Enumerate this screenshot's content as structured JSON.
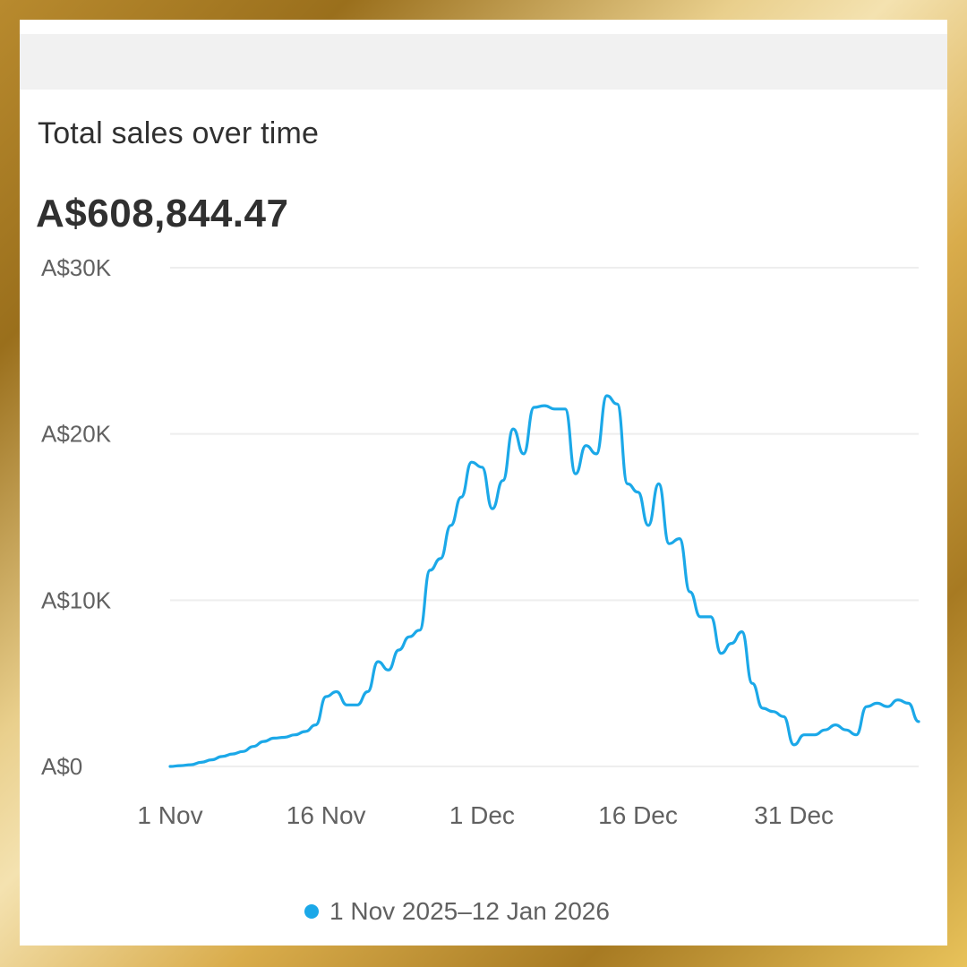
{
  "card": {
    "title": "Total sales over time",
    "total": "A$608,844.47"
  },
  "legend": {
    "label": "1 Nov 2025–12 Jan 2026"
  },
  "colors": {
    "series": "#1ba8e8",
    "grid": "#eeeeee",
    "axis_text": "#616161",
    "card_bg": "#ffffff"
  },
  "chart_data": {
    "type": "line",
    "title": "Total sales over time",
    "xlabel": "",
    "ylabel": "",
    "ylim": [
      0,
      30000
    ],
    "y_ticks": [
      {
        "value": 0,
        "label": "A$0"
      },
      {
        "value": 10000,
        "label": "A$10K"
      },
      {
        "value": 20000,
        "label": "A$20K"
      },
      {
        "value": 30000,
        "label": "A$30K"
      }
    ],
    "x_ticks": [
      {
        "day": 0,
        "label": "1 Nov"
      },
      {
        "day": 15,
        "label": "16 Nov"
      },
      {
        "day": 30,
        "label": "1 Dec"
      },
      {
        "day": 45,
        "label": "16 Dec"
      },
      {
        "day": 60,
        "label": "31 Dec"
      }
    ],
    "x_range": [
      0,
      72
    ],
    "series": [
      {
        "name": "1 Nov 2025–12 Jan 2026",
        "x": [
          0,
          1,
          2,
          3,
          4,
          5,
          6,
          7,
          8,
          9,
          10,
          11,
          12,
          13,
          14,
          15,
          16,
          17,
          18,
          19,
          20,
          21,
          22,
          23,
          24,
          25,
          26,
          27,
          28,
          29,
          30,
          31,
          32,
          33,
          34,
          35,
          36,
          37,
          38,
          39,
          40,
          41,
          42,
          43,
          44,
          45,
          46,
          47,
          48,
          49,
          50,
          51,
          52,
          53,
          54,
          55,
          56,
          57,
          58,
          59,
          60,
          61,
          62,
          63,
          64,
          65,
          66,
          67,
          68,
          69,
          70,
          71,
          72
        ],
        "values": [
          0,
          50,
          100,
          250,
          400,
          600,
          750,
          900,
          1200,
          1500,
          1700,
          1750,
          1900,
          2100,
          2500,
          4200,
          4500,
          3700,
          3700,
          4500,
          6300,
          5800,
          7000,
          7800,
          8200,
          11800,
          12500,
          14500,
          16200,
          18300,
          18000,
          15500,
          17200,
          20300,
          18800,
          21600,
          21700,
          21500,
          21500,
          17600,
          19300,
          18800,
          22300,
          21800,
          17000,
          16500,
          14500,
          17000,
          13400,
          13700,
          10500,
          9000,
          9000,
          6800,
          7400,
          8100,
          5000,
          3500,
          3300,
          3000,
          1300,
          1900,
          1900,
          2200,
          2500,
          2200,
          1900,
          3600,
          3800,
          3600,
          4000,
          3800,
          2700
        ]
      }
    ]
  }
}
